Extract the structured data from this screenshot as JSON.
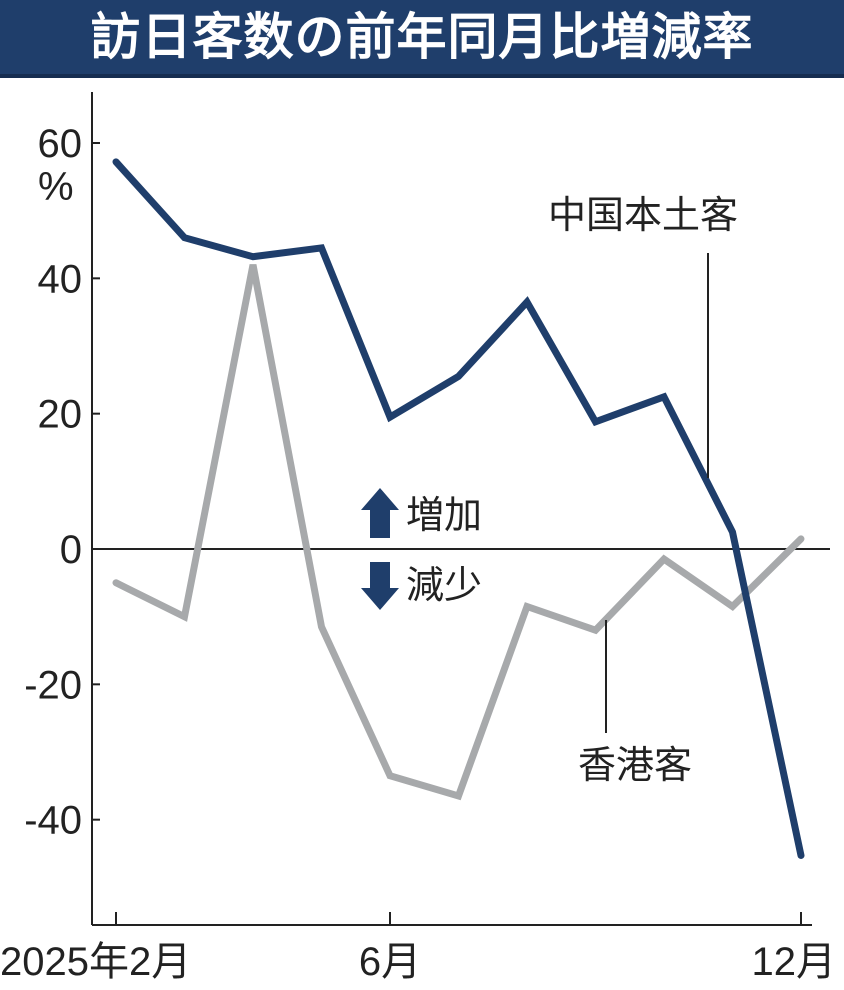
{
  "title": "訪日客数の前年同月比増減率",
  "chart_data": {
    "type": "line",
    "title": "訪日客数の前年同月比増減率",
    "unit": "%",
    "x": [
      "2025-02",
      "2025-03",
      "2025-04",
      "2025-05",
      "2025-06",
      "2025-07",
      "2025-08",
      "2025-09",
      "2025-10",
      "2025-11",
      "2025-12"
    ],
    "x_tick_labels": [
      {
        "x": "2025-02",
        "label": "2025年2月"
      },
      {
        "x": "2025-06",
        "label": "6月"
      },
      {
        "x": "2025-12",
        "label": "12月"
      }
    ],
    "y_ticks": [
      60,
      40,
      20,
      0,
      -20,
      -40
    ],
    "y_tick_labels": [
      "60",
      "40",
      "20",
      "0",
      "-20",
      "-40"
    ],
    "ylim": [
      -55,
      67
    ],
    "zero_line": true,
    "grid": false,
    "series": [
      {
        "name": "中国本土客",
        "color": "#1f3e6b",
        "values": [
          57.2,
          46.0,
          43.2,
          44.5,
          19.5,
          25.5,
          36.5,
          18.8,
          22.5,
          2.5,
          -45.3
        ]
      },
      {
        "name": "香港客",
        "color": "#a7a9ab",
        "values": [
          -5.0,
          -10.0,
          42.0,
          -11.5,
          -33.5,
          -36.5,
          -8.5,
          -12.0,
          -1.5,
          -8.5,
          1.5
        ]
      }
    ],
    "annotations": {
      "increase": "増加",
      "decrease": "減少"
    }
  }
}
